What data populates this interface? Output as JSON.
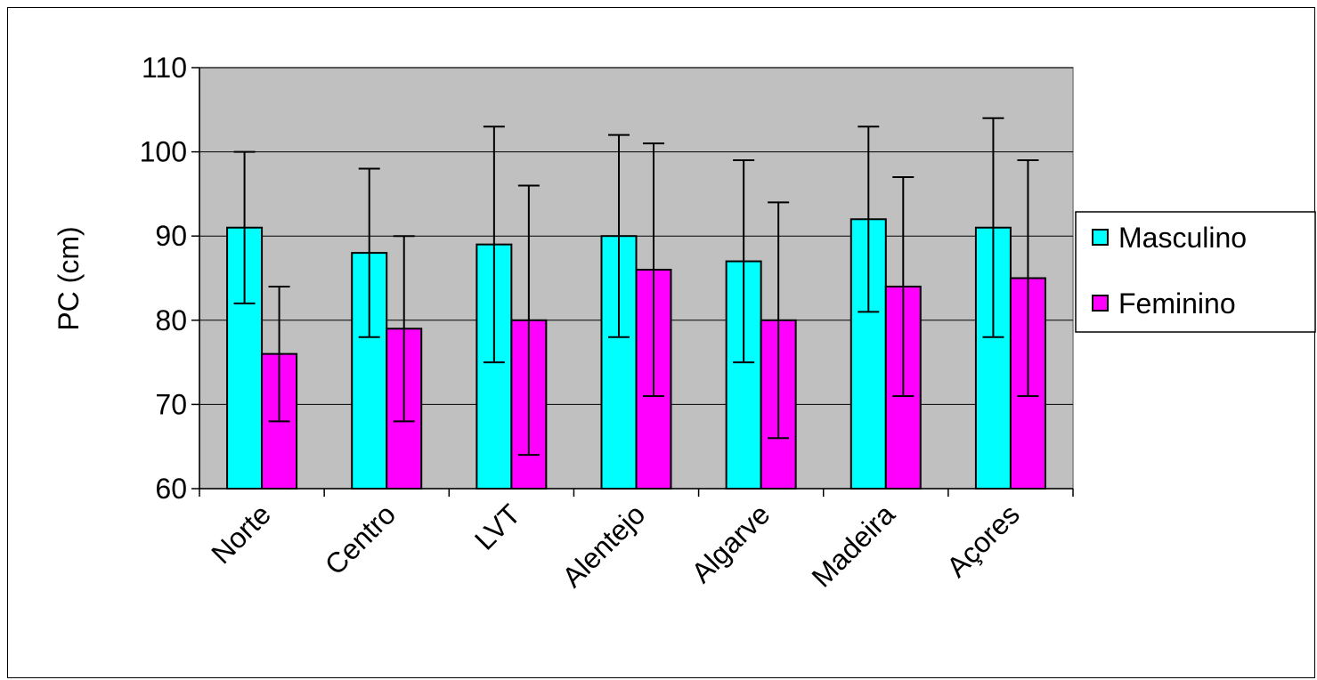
{
  "chart_data": {
    "type": "bar",
    "title": "",
    "xlabel": "",
    "ylabel": "PC (cm)",
    "ylim": [
      60,
      110
    ],
    "yticks": [
      60,
      70,
      80,
      90,
      100,
      110
    ],
    "grid": true,
    "legend_position": "right",
    "categories": [
      "Norte",
      "Centro",
      "LVT",
      "Alentejo",
      "Algarve",
      "Madeira",
      "Açores"
    ],
    "series": [
      {
        "name": "Masculino",
        "color": "#00FFFF",
        "values": [
          91,
          88,
          89,
          90,
          87,
          92,
          91
        ],
        "error_low": [
          82,
          78,
          75,
          78,
          75,
          81,
          78
        ],
        "error_high": [
          100,
          98,
          103,
          102,
          99,
          103,
          104
        ]
      },
      {
        "name": "Feminino",
        "color": "#FF00FF",
        "values": [
          76,
          79,
          80,
          86,
          80,
          84,
          85
        ],
        "error_low": [
          68,
          68,
          64,
          71,
          66,
          71,
          71
        ],
        "error_high": [
          84,
          90,
          96,
          101,
          94,
          97,
          99
        ]
      }
    ],
    "plot_background": "#C0C0C0"
  }
}
